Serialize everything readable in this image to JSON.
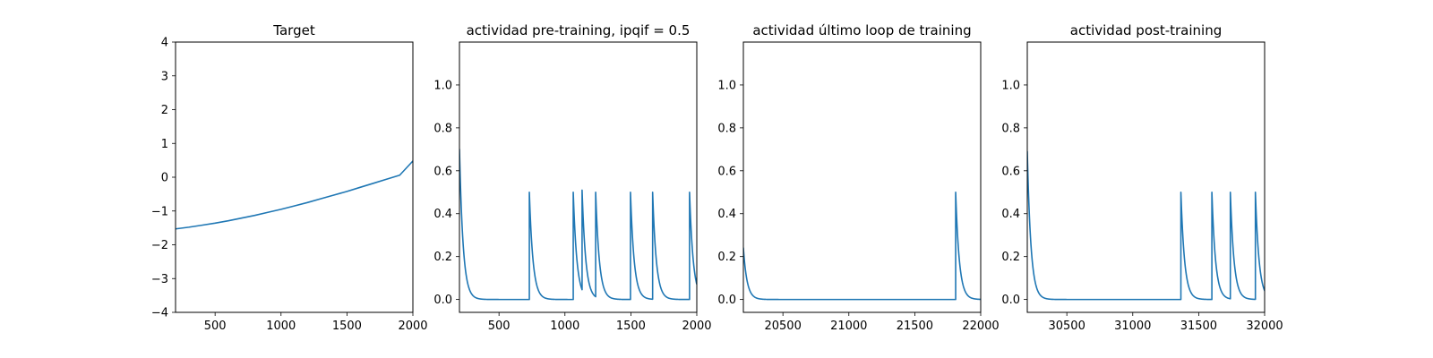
{
  "chart_data": [
    {
      "type": "line",
      "title": "Target",
      "xlim": [
        200,
        2000
      ],
      "ylim": [
        -4,
        4
      ],
      "xticks": [
        500,
        1000,
        1500,
        2000
      ],
      "yticks": [
        -4,
        -3,
        -2,
        -1,
        0,
        1,
        2,
        3,
        4
      ],
      "line_color": "#1f77b4",
      "grid": false,
      "series": [
        {
          "x": [
            200,
            300,
            400,
            500,
            600,
            700,
            800,
            900,
            1000,
            1100,
            1200,
            1300,
            1400,
            1500,
            1600,
            1700,
            1800,
            1900,
            2000
          ],
          "y": [
            -1.53,
            -1.48,
            -1.42,
            -1.36,
            -1.29,
            -1.21,
            -1.13,
            -1.04,
            -0.95,
            -0.85,
            -0.75,
            -0.64,
            -0.53,
            -0.42,
            -0.3,
            -0.18,
            -0.06,
            0.06,
            0.48
          ]
        }
      ]
    },
    {
      "type": "line",
      "title": "actividad pre-training, ipqif = 0.5",
      "xlim": [
        200,
        2000
      ],
      "ylim": [
        -0.06,
        1.2
      ],
      "xticks": [
        500,
        1000,
        1500,
        2000
      ],
      "yticks": [
        0.0,
        0.2,
        0.4,
        0.6,
        0.8,
        1.0
      ],
      "line_color": "#1f77b4",
      "grid": false,
      "spikes": {
        "baseline": 0.0,
        "tau": 28,
        "start": [
          200,
          0.7
        ],
        "events": [
          [
            730,
            0.5
          ],
          [
            1063,
            0.5
          ],
          [
            1130,
            0.51
          ],
          [
            1233,
            0.5
          ],
          [
            1497,
            0.5
          ],
          [
            1665,
            0.5
          ],
          [
            1945,
            0.5
          ]
        ]
      }
    },
    {
      "type": "line",
      "title": "actividad último loop de training",
      "xlim": [
        20200,
        22000
      ],
      "ylim": [
        -0.06,
        1.2
      ],
      "xticks": [
        20500,
        21000,
        21500,
        22000
      ],
      "yticks": [
        0.0,
        0.2,
        0.4,
        0.6,
        0.8,
        1.0
      ],
      "line_color": "#1f77b4",
      "grid": false,
      "spikes": {
        "baseline": 0.0,
        "tau": 28,
        "start": [
          20200,
          0.24
        ],
        "events": [
          [
            21810,
            0.5
          ]
        ]
      }
    },
    {
      "type": "line",
      "title": "actividad post-training",
      "xlim": [
        30200,
        32000
      ],
      "ylim": [
        -0.06,
        1.2
      ],
      "xticks": [
        30500,
        31000,
        31500,
        32000
      ],
      "yticks": [
        0.0,
        0.2,
        0.4,
        0.6,
        0.8,
        1.0
      ],
      "line_color": "#1f77b4",
      "grid": false,
      "spikes": {
        "baseline": 0.0,
        "tau": 28,
        "start": [
          30200,
          0.69
        ],
        "events": [
          [
            31365,
            0.5
          ],
          [
            31600,
            0.5
          ],
          [
            31740,
            0.5
          ],
          [
            31930,
            0.5
          ]
        ]
      }
    }
  ]
}
